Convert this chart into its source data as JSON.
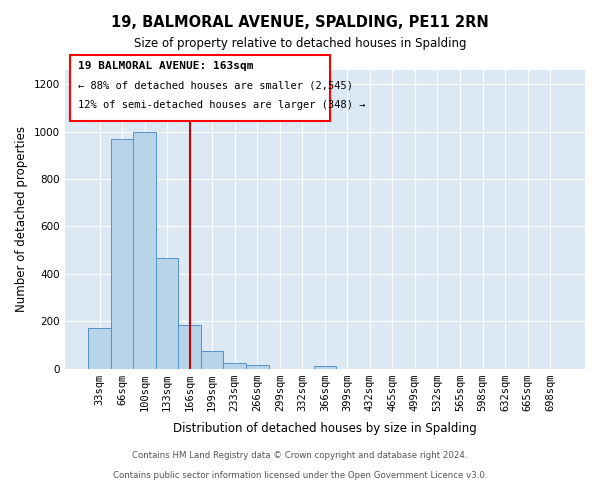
{
  "title": "19, BALMORAL AVENUE, SPALDING, PE11 2RN",
  "subtitle": "Size of property relative to detached houses in Spalding",
  "xlabel": "Distribution of detached houses by size in Spalding",
  "ylabel": "Number of detached properties",
  "bar_labels": [
    "33sqm",
    "66sqm",
    "100sqm",
    "133sqm",
    "166sqm",
    "199sqm",
    "233sqm",
    "266sqm",
    "299sqm",
    "332sqm",
    "366sqm",
    "399sqm",
    "432sqm",
    "465sqm",
    "499sqm",
    "532sqm",
    "565sqm",
    "598sqm",
    "632sqm",
    "665sqm",
    "698sqm"
  ],
  "bar_values": [
    170,
    970,
    1000,
    465,
    185,
    75,
    25,
    15,
    0,
    0,
    10,
    0,
    0,
    0,
    0,
    0,
    0,
    0,
    0,
    0,
    0
  ],
  "bar_color": "#b8d4e8",
  "bar_edge_color": "#5590c8",
  "vline_color": "#cc0000",
  "ylim": [
    0,
    1260
  ],
  "yticks": [
    0,
    200,
    400,
    600,
    800,
    1000,
    1200
  ],
  "annotation_title": "19 BALMORAL AVENUE: 163sqm",
  "annotation_line1": "← 88% of detached houses are smaller (2,545)",
  "annotation_line2": "12% of semi-detached houses are larger (348) →",
  "footer_line1": "Contains HM Land Registry data © Crown copyright and database right 2024.",
  "footer_line2": "Contains public sector information licensed under the Open Government Licence v3.0.",
  "fig_bg_color": "#ffffff",
  "plot_bg_color": "#dce9f5",
  "grid_color": "#ffffff"
}
